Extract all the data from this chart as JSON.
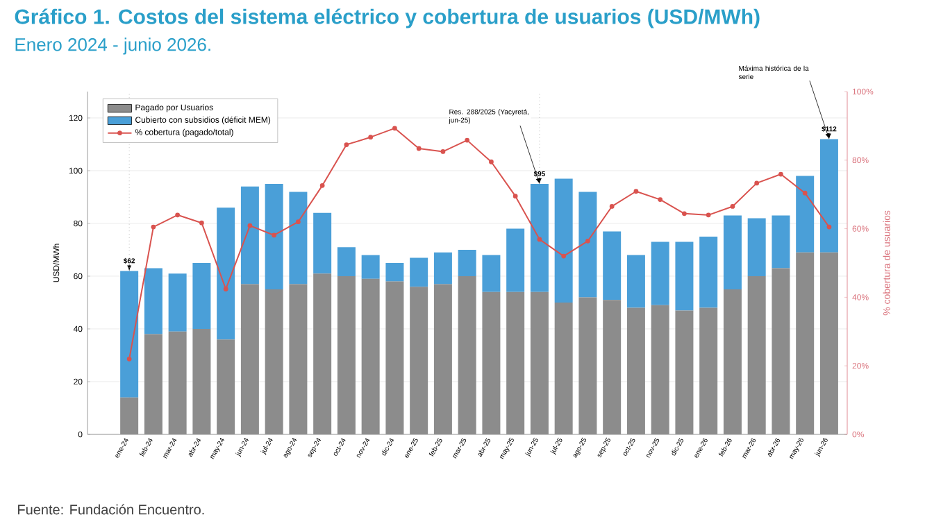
{
  "chart_data": {
    "type": "bar",
    "stacked": true,
    "title": "Gráfico 1. Costos del sistema eléctrico y cobertura de usuarios (USD/MWh)",
    "subtitle": "Enero 2024 - junio 2026.",
    "ylabel": "USD/MWh",
    "y2label": "% cobertura de usuarios",
    "categories": [
      "ene-24",
      "feb-24",
      "mar-24",
      "abr-24",
      "may-24",
      "jun-24",
      "jul-24",
      "ago-24",
      "sep-24",
      "oct-24",
      "nov-24",
      "dic-24",
      "ene-25",
      "feb-25",
      "mar-25",
      "abr-25",
      "may-25",
      "jun-25",
      "jul-25",
      "ago-25",
      "sep-25",
      "oct-25",
      "nov-25",
      "dic-25",
      "ene-26",
      "feb-26",
      "mar-26",
      "abr-26",
      "may-26",
      "jun-26"
    ],
    "series": [
      {
        "name": "Pagado por Usuarios",
        "color": "#8c8c8c",
        "values": [
          14,
          38,
          39,
          40,
          36,
          57,
          55,
          57,
          61,
          60,
          59,
          58,
          56,
          57,
          60,
          54,
          54,
          54,
          50,
          52,
          51,
          48,
          49,
          47,
          48,
          55,
          60,
          63,
          69,
          69
        ]
      },
      {
        "name": "Cubierto con subsidios (déficit MEM)",
        "color": "#4a9fd8",
        "values": [
          48,
          25,
          22,
          25,
          50,
          37,
          40,
          35,
          23,
          11,
          9,
          7,
          11,
          12,
          10,
          14,
          24,
          41,
          47,
          40,
          26,
          20,
          24,
          26,
          27,
          28,
          22,
          20,
          29,
          43
        ]
      },
      {
        "name": "% cobertura (pagado/total)",
        "type": "line",
        "axis": "y2",
        "color": "#d9534f",
        "values": [
          22,
          60.5,
          64,
          61.7,
          42.4,
          60.9,
          58.1,
          62,
          72.6,
          84.5,
          86.7,
          89.3,
          83.4,
          82.5,
          85.8,
          79.5,
          69.5,
          56.9,
          52,
          56.4,
          66.5,
          70.9,
          68.5,
          64.4,
          64,
          66.5,
          73.3,
          75.9,
          70.4,
          60.5
        ]
      }
    ],
    "ylim": [
      0,
      130
    ],
    "yticks": [
      0,
      20,
      40,
      60,
      80,
      100,
      120
    ],
    "y2lim": [
      0,
      100
    ],
    "y2ticks": [
      {
        "value": 0,
        "label": "0%"
      },
      {
        "value": 20,
        "label": "20%"
      },
      {
        "value": 40,
        "label": "40%"
      },
      {
        "value": 60,
        "label": "60%"
      },
      {
        "value": 80,
        "label": "80%"
      },
      {
        "value": 100,
        "label": "100%"
      }
    ],
    "ref_lines": [
      {
        "axis": "x",
        "value": "ene-24",
        "line_style": "dotted",
        "color": "#999999"
      },
      {
        "axis": "x",
        "value": "jun-25",
        "line_style": "dotted",
        "color": "#999999"
      }
    ],
    "annotations": [
      {
        "text": "$62",
        "x": "ene-24",
        "y": 62
      },
      {
        "text": "$95",
        "x": "jun-25",
        "y": 95
      },
      {
        "text": "Res. 288/2025 (Yacyretá, jun-25)",
        "x": "jun-25",
        "y": 95
      },
      {
        "text": "$112",
        "x": "jun-26",
        "y": 112
      },
      {
        "text": "Máxima histórica de la serie",
        "x": "jun-26",
        "y": 112
      },
      "Fuente: Fundación Encuentro."
    ],
    "grid": "y",
    "legend": "top left",
    "marker": "circle",
    "line_style": "solid"
  }
}
